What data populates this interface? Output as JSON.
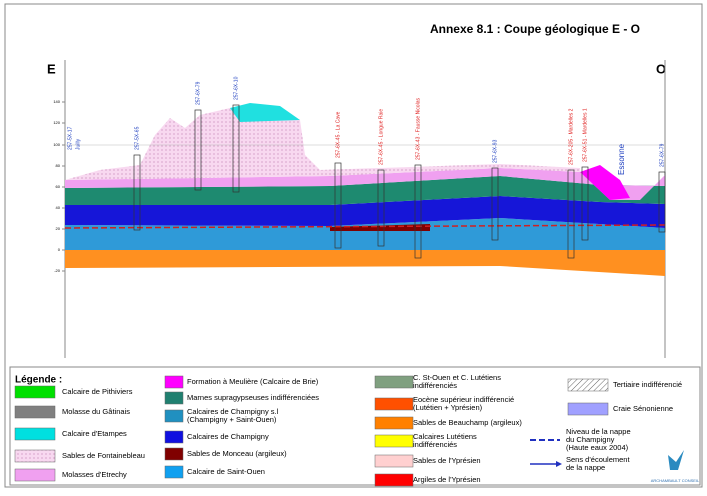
{
  "header": {
    "title": "Annexe 8.1 : Coupe géologique E - O",
    "left": "E",
    "right": "O"
  },
  "axis": {
    "ticks": [
      "140",
      "120",
      "100",
      "80",
      "60",
      "40",
      "20",
      "0",
      "-20"
    ]
  },
  "wells": [
    {
      "label": "257-5X-17",
      "color": "#2040c0"
    },
    {
      "label": "Juilly",
      "color": "#2040c0"
    },
    {
      "label": "257-5X-65",
      "color": "#2040c0"
    },
    {
      "label": "257-6X-79",
      "color": "#2040c0"
    },
    {
      "label": "257-6X-10",
      "color": "#2040c0"
    },
    {
      "label": "257-6X-45 - La Cave",
      "color": "#e02020"
    },
    {
      "label": "257-6X-45 - Longue Raie",
      "color": "#e02020"
    },
    {
      "label": "257-6X-43 - Fausse Nicolas",
      "color": "#e02020"
    },
    {
      "label": "257-6X-93",
      "color": "#2040c0"
    },
    {
      "label": "257-6X-205 - Mardelles 2",
      "color": "#e02020"
    },
    {
      "label": "257-6X-51 - Mardelles 1",
      "color": "#e02020"
    },
    {
      "label": "Essonne",
      "color": "#2040c0"
    },
    {
      "label": "257-6X-79",
      "color": "#2040c0"
    }
  ],
  "legend": {
    "title": "Légende :",
    "items": [
      {
        "lines": [
          "Calcaire de Pithiviers"
        ],
        "color": "#00e000"
      },
      {
        "lines": [
          "Molasse du Gâtinais"
        ],
        "color": "#808080"
      },
      {
        "lines": [
          "Calcaire d'Etampes"
        ],
        "color": "#00e0e0"
      },
      {
        "lines": [
          "Sables de Fontainebleau"
        ],
        "color": "#f8d8f0"
      },
      {
        "lines": [
          "Molasses d'Etrechy"
        ],
        "color": "#f0a0f0"
      },
      {
        "lines": [
          "Formation à Meulière (Calcaire de Brie)"
        ],
        "color": "#ff00ff"
      },
      {
        "lines": [
          "Marnes supragypseuses indifférenciées"
        ],
        "color": "#208070"
      },
      {
        "lines": [
          "Calcaires de Champigny s.l",
          "(Champigny + Saint-Ouen)"
        ],
        "color": "#2090c0"
      },
      {
        "lines": [
          "Calcaires de Champigny"
        ],
        "color": "#1010e0"
      },
      {
        "lines": [
          "Sables de Monceau (argileux)"
        ],
        "color": "#800000"
      },
      {
        "lines": [
          "Calcaire de Saint-Ouen"
        ],
        "color": "#10a0f0"
      },
      {
        "lines": [
          "C. St-Ouen et C. Lutétiens",
          "indifférenciés"
        ],
        "color": "#80a080"
      },
      {
        "lines": [
          "Eocène supérieur indifférencié",
          "(Lutétien + Yprésien)"
        ],
        "color": "#ff5000"
      },
      {
        "lines": [
          "Sables de Beauchamp (argileux)"
        ],
        "color": "#ff8000"
      },
      {
        "lines": [
          "Calcaires Lutétiens",
          "indifférenciés"
        ],
        "color": "#ffff00"
      },
      {
        "lines": [
          "Sables de l'Yprésien"
        ],
        "color": "#ffd0d0"
      },
      {
        "lines": [
          "Argiles de l'Yprésien"
        ],
        "color": "#ff0000"
      },
      {
        "lines": [
          "Tertiaire indifférencié"
        ],
        "color": "#ffffff"
      },
      {
        "lines": [
          "Craie Sénonienne"
        ],
        "color": "#a0a0ff"
      },
      {
        "lines": [
          "Niveau de la nappe",
          "du Champigny",
          "(Haute eaux 2004)"
        ],
        "color": "#2030c0"
      },
      {
        "lines": [
          "Sens d'écoulement",
          "de la nappe"
        ],
        "color": "#2030c0"
      }
    ]
  },
  "logo": "ARCHAMBAULT CONSEIL"
}
